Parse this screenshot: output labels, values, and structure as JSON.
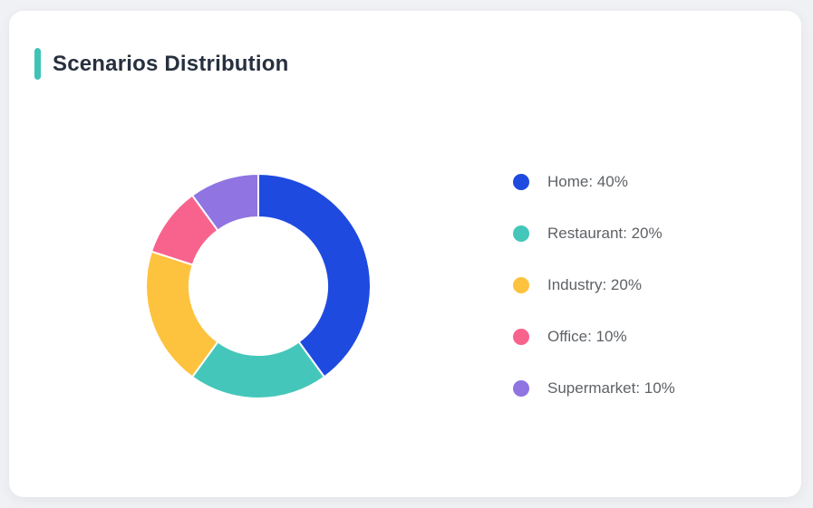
{
  "page": {
    "background_color": "#f0f1f5",
    "card_background_color": "#ffffff"
  },
  "header": {
    "title": "Scenarios Distribution",
    "accent_color": "#3ec3b6",
    "title_color": "#27303f"
  },
  "chart_data": {
    "type": "pie",
    "title": "Scenarios Distribution",
    "donut": true,
    "start_angle_deg": 0,
    "direction": "clockwise",
    "outer_radius_px": 124,
    "inner_radius_px": 76,
    "segment_border_color": "#ffffff",
    "segment_border_width": 2,
    "legend_position": "right",
    "legend_text_color": "#5e6266",
    "segments": [
      {
        "label": "Home",
        "value": 40,
        "color": "#1e4ae0",
        "legend_text": "Home: 40%"
      },
      {
        "label": "Restaurant",
        "value": 20,
        "color": "#44c7ba",
        "legend_text": "Restaurant: 20%"
      },
      {
        "label": "Industry",
        "value": 20,
        "color": "#fdc33f",
        "legend_text": "Industry: 20%"
      },
      {
        "label": "Office",
        "value": 10,
        "color": "#f8638e",
        "legend_text": "Office: 10%"
      },
      {
        "label": "Supermarket",
        "value": 10,
        "color": "#8f74e2",
        "legend_text": "Supermarket: 10%"
      }
    ]
  }
}
